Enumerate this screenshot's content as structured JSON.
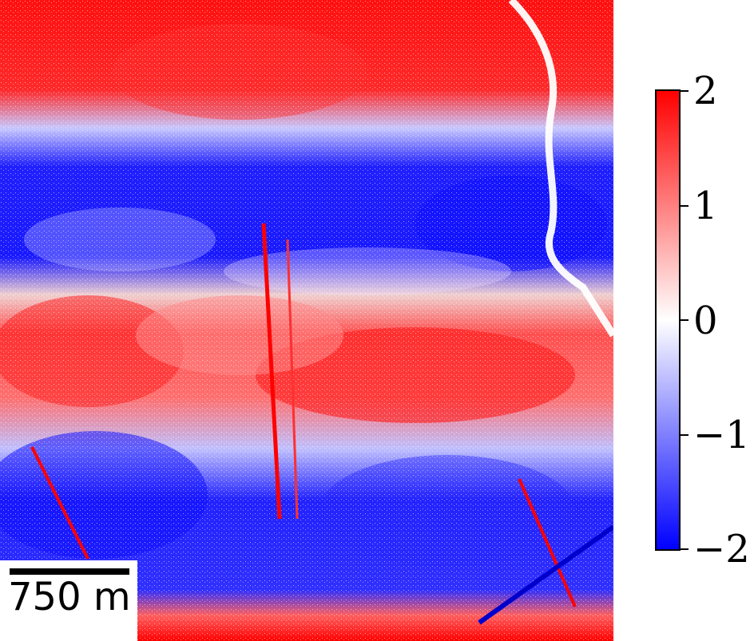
{
  "scalebar": {
    "label": "750 m"
  },
  "colorbar": {
    "colormap": "bwr",
    "colors": {
      "max": "#ff0000",
      "mid": "#ffffff",
      "min": "#0000ff"
    },
    "min": -2,
    "max": 2,
    "ticks": [
      "2",
      "1",
      "0",
      "−1",
      "−2"
    ]
  }
}
